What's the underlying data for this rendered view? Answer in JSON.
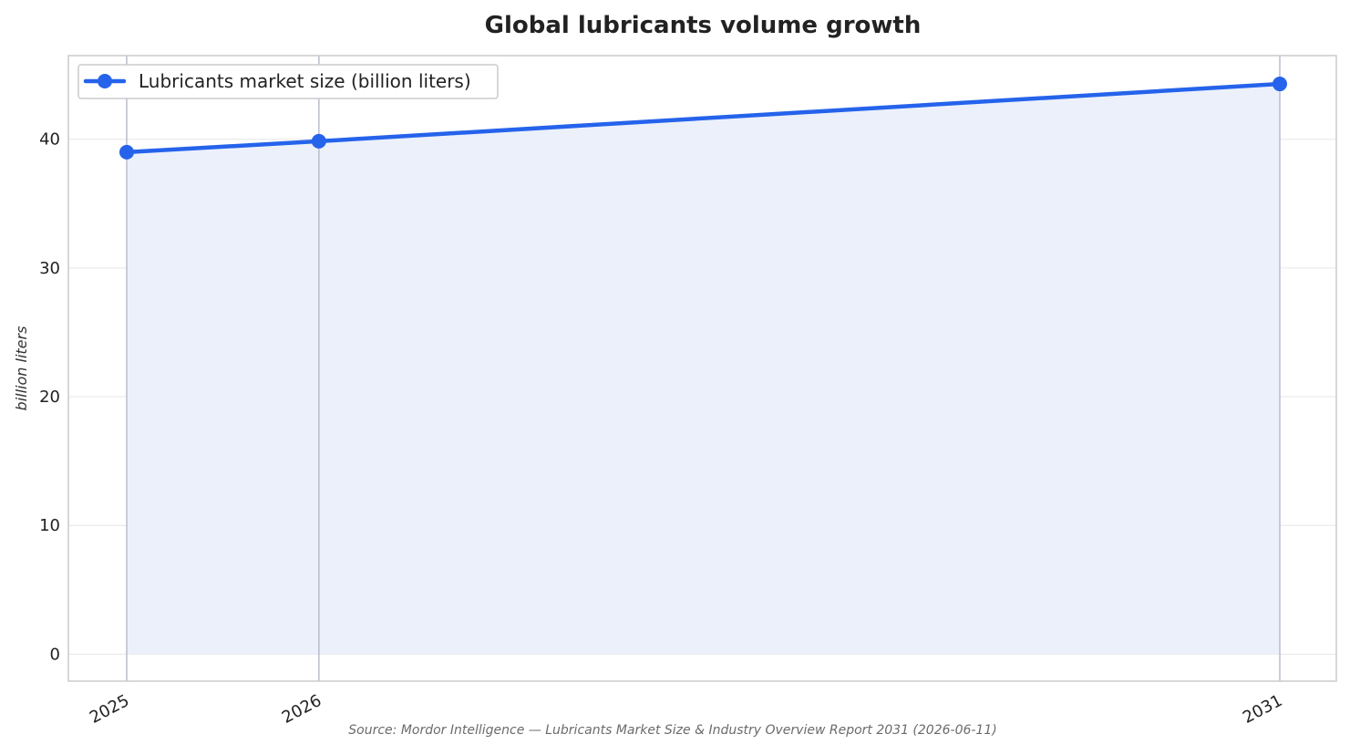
{
  "chart_data": {
    "type": "area",
    "title": "Global lubricants volume growth",
    "xlabel": "",
    "ylabel": "billion liters",
    "x": [
      "2025",
      "2026",
      "2031"
    ],
    "series": [
      {
        "name": "Lubricants market size (billion liters)",
        "values": [
          39.0,
          39.85,
          44.3
        ]
      }
    ],
    "ylim": [
      -2.1,
      46.5
    ],
    "yticks": [
      0,
      10,
      20,
      30,
      40
    ],
    "y_tick_labels": [
      "0",
      "10",
      "20",
      "30",
      "40"
    ],
    "x_tick_labels": [
      "2025",
      "2026",
      "2031"
    ],
    "grid": true,
    "legend_position": "top-left",
    "colors": {
      "line": "#2563eb",
      "fill": "#ebf0fb",
      "grid": "#e6e6e6",
      "vline": "#b8bdcc",
      "frame": "#cccccc"
    },
    "source": "Source: Mordor Intelligence — Lubricants Market Size & Industry Overview Report 2031 (2026-06-11)"
  }
}
